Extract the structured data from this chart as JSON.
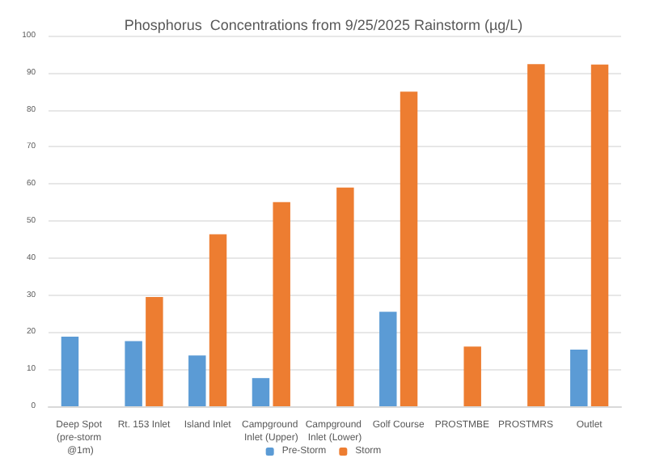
{
  "chart_data": {
    "type": "bar",
    "title": "Phosphorus  Concentrations from 9/25/2025 Rainstorm (µg/L)",
    "categories": [
      "Deep Spot (pre-storm @1m)",
      "Rt. 153 Inlet",
      "Island Inlet",
      "Campground Inlet (Upper)",
      "Campground Inlet (Lower)",
      "Golf Course",
      "PROSTMBE",
      "PROSTMRS",
      "Outlet"
    ],
    "series": [
      {
        "name": "Pre-Storm",
        "color": "#5b9bd5",
        "values": [
          18.8,
          17.6,
          13.7,
          7.6,
          null,
          25.5,
          null,
          null,
          15.3
        ]
      },
      {
        "name": "Storm",
        "color": "#ed7d31",
        "values": [
          null,
          29.5,
          46.4,
          55.1,
          59,
          84.9,
          16.1,
          92.3,
          92.2
        ]
      }
    ],
    "ylim": [
      0,
      100
    ],
    "yticks": [
      0,
      10,
      20,
      30,
      40,
      50,
      60,
      70,
      80,
      90,
      100
    ],
    "grid": "y",
    "legend": "bottom"
  }
}
